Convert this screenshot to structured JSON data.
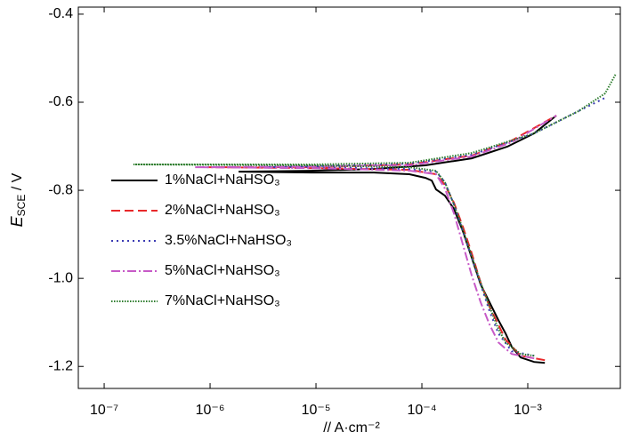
{
  "chart_data": {
    "type": "line",
    "xscale": "log",
    "xlabel": "// A·cm⁻²",
    "ylabel": [
      "E",
      "SCE",
      " / V"
    ],
    "xlim": [
      5.7e-08,
      0.00748
    ],
    "ylim": [
      -1.25,
      -0.384
    ],
    "xticks": [
      {
        "value": 1e-07,
        "label": "10⁻⁷"
      },
      {
        "value": 1e-06,
        "label": "10⁻⁶"
      },
      {
        "value": 1e-05,
        "label": "10⁻⁵"
      },
      {
        "value": 0.0001,
        "label": "10⁻⁴"
      },
      {
        "value": 0.001,
        "label": "10⁻³"
      }
    ],
    "yticks": [
      -0.4,
      -0.6,
      -0.8,
      {
        "value": -1,
        "label": "-1.0"
      },
      -1.2
    ],
    "legend": "upper-left",
    "series": [
      {
        "name": "1%NaCl+NaHSO₃",
        "color": "#000000",
        "linestyle": "solid",
        "x": [
          0.00145,
          0.00115,
          0.000857,
          0.000706,
          0.000617,
          0.000528,
          0.000436,
          0.000359,
          0.000296,
          0.000244,
          0.000201,
          0.000165,
          0.000136,
          0.000124,
          0.000108,
          7.62e-05,
          3.52e-05,
          9.08e-06,
          1.86e-06,
          9.08e-06,
          3.52e-05,
          0.000108,
          0.000296,
          0.000641,
          0.00115,
          0.00186
        ],
        "y": [
          -1.1919,
          -1.1899,
          -1.1798,
          -1.1556,
          -1.1253,
          -1.0949,
          -1.0545,
          -1.0141,
          -0.9535,
          -0.8929,
          -0.8424,
          -0.8121,
          -0.798,
          -0.7778,
          -0.7717,
          -0.7636,
          -0.7596,
          -0.7596,
          -0.7576,
          -0.7556,
          -0.7515,
          -0.7434,
          -0.7273,
          -0.701,
          -0.6707,
          -0.6303
        ]
      },
      {
        "name": "2%NaCl+NaHSO₃",
        "color": "#e8282a",
        "linestyle": "dashed",
        "x": [
          0.00145,
          0.000857,
          0.000617,
          0.000528,
          0.000436,
          0.000359,
          0.000296,
          0.000244,
          0.000201,
          0.000165,
          0.000136,
          7.62e-05,
          9.08e-06,
          9.44e-07,
          9.08e-06,
          7.62e-05,
          0.000296,
          0.000706,
          0.00186
        ],
        "y": [
          -1.1859,
          -1.1758,
          -1.1394,
          -1.1051,
          -1.0646,
          -1.0101,
          -0.9434,
          -0.8828,
          -0.8283,
          -0.7879,
          -0.7636,
          -0.7535,
          -0.7495,
          -0.7475,
          -0.7475,
          -0.7414,
          -0.7212,
          -0.6869,
          -0.6303
        ]
      },
      {
        "name": "3.5%NaCl+NaHSO₃",
        "color": "#3b3bb3",
        "linestyle": "dotted",
        "x": [
          0.00115,
          0.000706,
          0.000528,
          0.000436,
          0.000359,
          0.000296,
          0.000244,
          0.000201,
          0.000165,
          0.000136,
          7.62e-05,
          9.08e-06,
          3.45e-06,
          9.08e-06,
          7.62e-05,
          0.000296,
          0.00115,
          0.00301,
          0.00538
        ],
        "y": [
          -1.1758,
          -1.1657,
          -1.1253,
          -1.0747,
          -1.0141,
          -0.9535,
          -0.8929,
          -0.8323,
          -0.7818,
          -0.7576,
          -0.7515,
          -0.7475,
          -0.7475,
          -0.7455,
          -0.7394,
          -0.7192,
          -0.6707,
          -0.6202,
          -0.5899
        ]
      },
      {
        "name": "5%NaCl+NaHSO₃",
        "color": "#c75ac7",
        "linestyle": "dashdot",
        "x": [
          0.00115,
          0.000706,
          0.000528,
          0.000436,
          0.000359,
          0.000296,
          0.000244,
          0.000201,
          0.000165,
          0.000136,
          7.62e-05,
          9.08e-06,
          7.06e-07,
          9.08e-06,
          7.62e-05,
          0.000296,
          0.000706,
          0.00186
        ],
        "y": [
          -1.1818,
          -1.1717,
          -1.1455,
          -1.1051,
          -1.0545,
          -0.9939,
          -0.9232,
          -0.8525,
          -0.796,
          -0.7636,
          -0.7555,
          -0.7495,
          -0.7475,
          -0.7455,
          -0.7434,
          -0.7232,
          -0.6909,
          -0.6303
        ]
      },
      {
        "name": "7%NaCl+NaHSO₃",
        "color": "#2e7d2e",
        "linestyle": "densely-dotted",
        "x": [
          0.00115,
          0.000857,
          0.000617,
          0.000528,
          0.000436,
          0.000359,
          0.000296,
          0.000244,
          0.000201,
          0.000165,
          0.000136,
          7.62e-05,
          9.08e-06,
          1.89e-07,
          9.08e-06,
          7.62e-05,
          0.000296,
          0.00115,
          0.00301,
          0.00538,
          0.00679
        ],
        "y": [
          -1.1758,
          -1.1717,
          -1.1455,
          -1.1152,
          -1.0646,
          -1.0101,
          -0.9495,
          -0.8889,
          -0.8323,
          -0.7818,
          -0.7556,
          -0.7475,
          -0.7434,
          -0.7414,
          -0.7414,
          -0.7374,
          -0.7152,
          -0.6707,
          -0.6202,
          -0.5798,
          -0.5354
        ]
      }
    ]
  }
}
